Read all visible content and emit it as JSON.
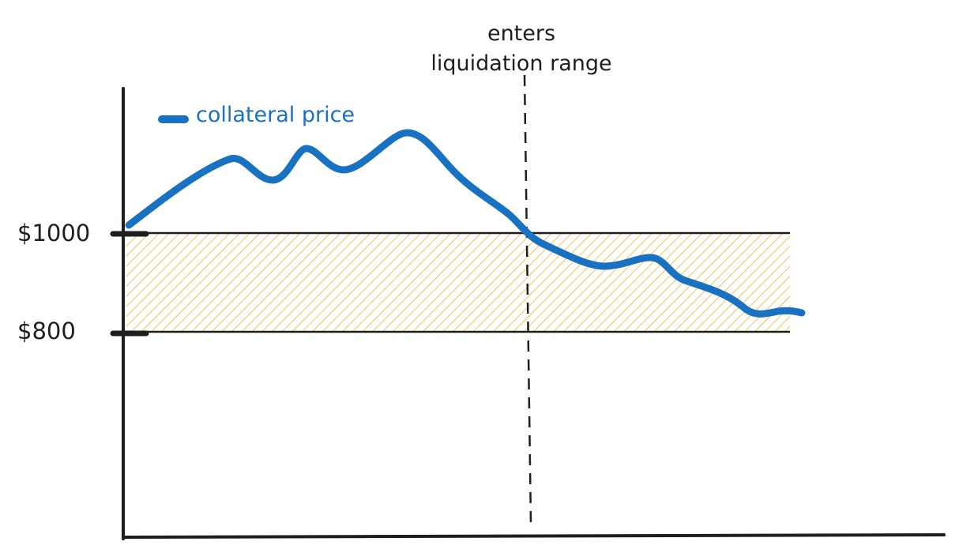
{
  "colors": {
    "line": "#1971c2",
    "band_hatch": "#f59f00",
    "ink": "#1e1e1e"
  },
  "legend": {
    "label": "collateral price"
  },
  "y_labels": {
    "upper": "$1000",
    "lower": "$800"
  },
  "annotation": {
    "line1": "enters",
    "line2": "liquidation range"
  }
}
